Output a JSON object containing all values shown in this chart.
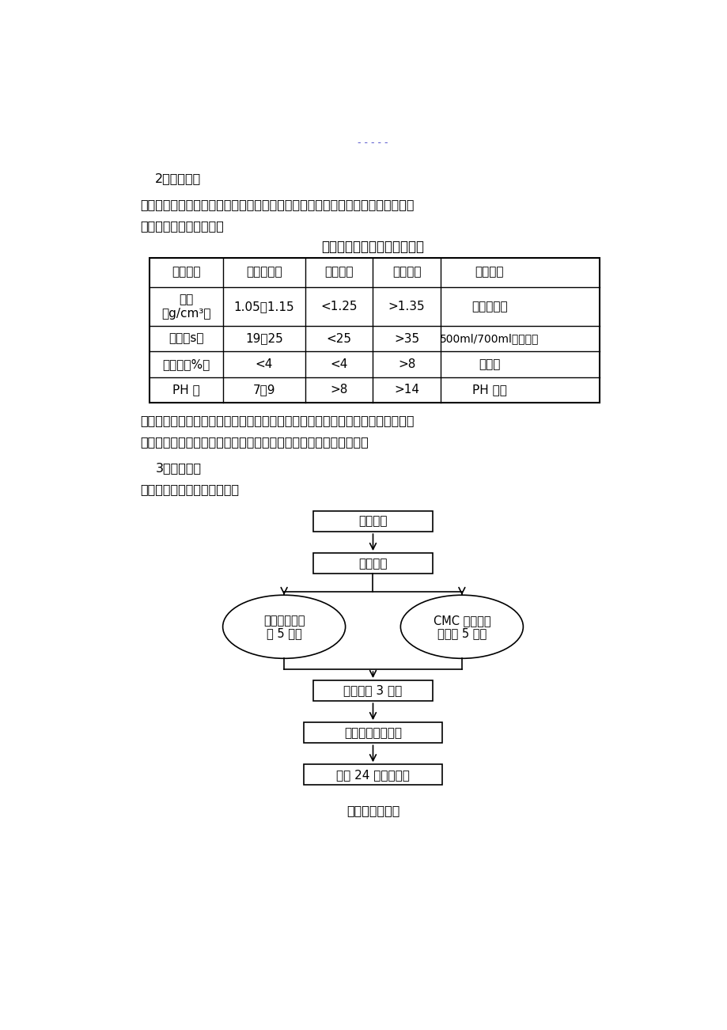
{
  "bg_color": "#ffffff",
  "page_marker": "- - - - -",
  "section2_title": "2、泥浆性能",
  "para1_line1": "根据本工程的地质情况，拟采用优质钓基膊润土和自来水为原材料搞拈而成。泥浆",
  "para1_line2": "性能指标要求详见下表：",
  "table_title": "成槽护壁泥浆性能指标要求表",
  "table_headers": [
    "泥浆性能",
    "新配置泥浆",
    "循环泥浆",
    "废弃泥浆",
    "检测方法"
  ],
  "table_row0_c0_line1": "比重",
  "table_row0_c0_line2": "（g/cm³）",
  "table_rows": [
    [
      "比重\n（g/cm³）",
      "1.05～1.15",
      "<1.25",
      ">1.35",
      "泥浆比重计"
    ],
    [
      "粘度（s）",
      "19～25",
      "<25",
      ">35",
      "500ml/700ml、漏斗法"
    ],
    [
      "含沙率（%）",
      "<4",
      "<4",
      ">8",
      "洗沙瓶"
    ],
    [
      "PH 値",
      "7～9",
      ">8",
      ">14",
      "PH 试纸"
    ]
  ],
  "para2_line1": "护壁泥浆在使用前，应进行室内性能试验，施工过程中根据监控数据及时调整泥浆",
  "para2_line2": "指标。不符合灘注水下混凝土泥浆指标要求的应作为废弃泥浆处理。",
  "section3_title": "3、泥浆配制",
  "para3": "泥浆配制工艺流程详见下图：",
  "flow_box1": "原料试验",
  "flow_box2": "称量投料",
  "flow_ellipse_left_1": "膊润土加水冲",
  "flow_ellipse_left_2": "抜 5 分钟",
  "flow_ellipse_right_1": "CMC 和纯碱加",
  "flow_ellipse_right_2": "水搞拈 5 分钟",
  "flow_box3": "混合搞拈 3 分钟",
  "flow_box4": "泥浆性能指标测定",
  "flow_box5": "溶胀 24 小时后备用",
  "flow_caption": "泥浆配置流程图"
}
